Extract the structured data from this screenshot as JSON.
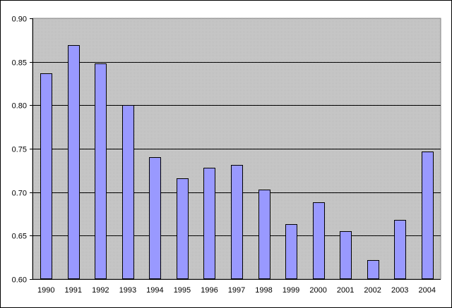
{
  "chart_data": {
    "type": "bar",
    "title": "",
    "xlabel": "",
    "ylabel": "",
    "categories": [
      "1990",
      "1991",
      "1992",
      "1993",
      "1994",
      "1995",
      "1996",
      "1997",
      "1998",
      "1999",
      "2000",
      "2001",
      "2002",
      "2003",
      "2004"
    ],
    "values": [
      0.837,
      0.869,
      0.848,
      0.8,
      0.74,
      0.716,
      0.728,
      0.731,
      0.703,
      0.663,
      0.688,
      0.655,
      0.622,
      0.668,
      0.747
    ],
    "ylim": [
      0.6,
      0.9
    ],
    "yticks": [
      "0.60",
      "0.65",
      "0.70",
      "0.75",
      "0.80",
      "0.85",
      "0.90"
    ],
    "grid": "horizontal",
    "legend": "none",
    "colors": {
      "bar_fill": "#9999ff",
      "bar_stroke": "#000000",
      "plot_background": "#c0c0c0",
      "gridline": "#000000",
      "frame_background": "#ffffff"
    }
  }
}
